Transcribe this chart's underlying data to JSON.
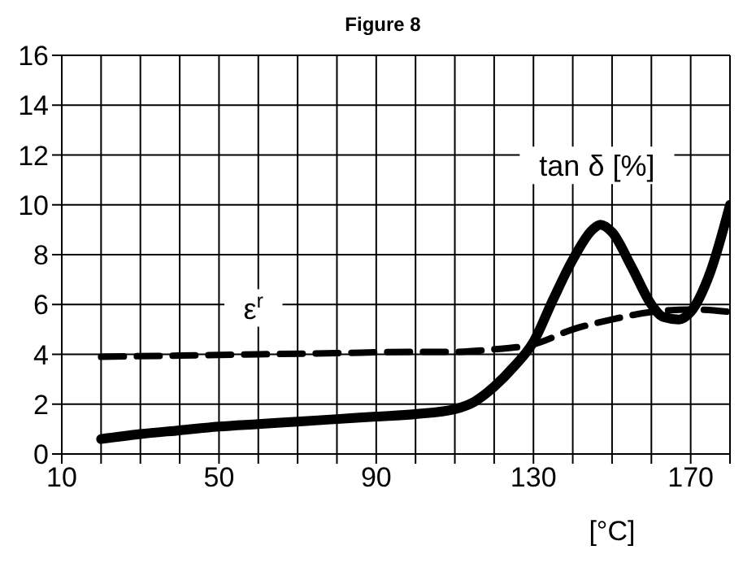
{
  "chart_data": {
    "type": "line",
    "title": "Figure 8",
    "xlabel": "[°C]",
    "xlim": [
      10,
      180
    ],
    "xticks": [
      10,
      {
        "value": 20,
        "label": null
      },
      {
        "value": 30,
        "label": null
      },
      {
        "value": 40,
        "label": null
      },
      50,
      {
        "value": 60,
        "label": null
      },
      {
        "value": 70,
        "label": null
      },
      {
        "value": 80,
        "label": null
      },
      90,
      {
        "value": 100,
        "label": null
      },
      {
        "value": 110,
        "label": null
      },
      {
        "value": 120,
        "label": null
      },
      130,
      {
        "value": 140,
        "label": null
      },
      {
        "value": 150,
        "label": null
      },
      {
        "value": 160,
        "label": null
      },
      170,
      {
        "value": 180,
        "label": null
      }
    ],
    "ylim": [
      0,
      16
    ],
    "yticks": [
      0,
      2,
      4,
      6,
      8,
      10,
      12,
      14,
      16
    ],
    "grid": true,
    "legend": false,
    "marker": "none",
    "series": [
      {
        "name": "tan δ [%]",
        "color": "#000000",
        "line_style": "solid",
        "x": [
          20,
          30,
          40,
          50,
          60,
          70,
          80,
          90,
          100,
          110,
          115,
          120,
          125,
          130,
          135,
          140,
          145,
          147,
          150,
          155,
          160,
          163,
          167,
          170,
          175,
          180
        ],
        "values": [
          0.6,
          0.8,
          0.95,
          1.1,
          1.2,
          1.3,
          1.4,
          1.5,
          1.6,
          1.8,
          2.1,
          2.7,
          3.5,
          4.5,
          6.2,
          7.8,
          9.0,
          9.2,
          8.9,
          7.5,
          6.0,
          5.5,
          5.4,
          5.7,
          7.3,
          10
        ]
      },
      {
        "name": "ε$^{r}$",
        "color": "#000000",
        "line_style": "dashed",
        "x": [
          20,
          40,
          60,
          80,
          100,
          110,
          120,
          130,
          140,
          150,
          160,
          170,
          180
        ],
        "values": [
          3.9,
          3.95,
          4.0,
          4.05,
          4.1,
          4.1,
          4.2,
          4.4,
          5.0,
          5.4,
          5.7,
          5.8,
          5.7
        ]
      }
    ]
  }
}
